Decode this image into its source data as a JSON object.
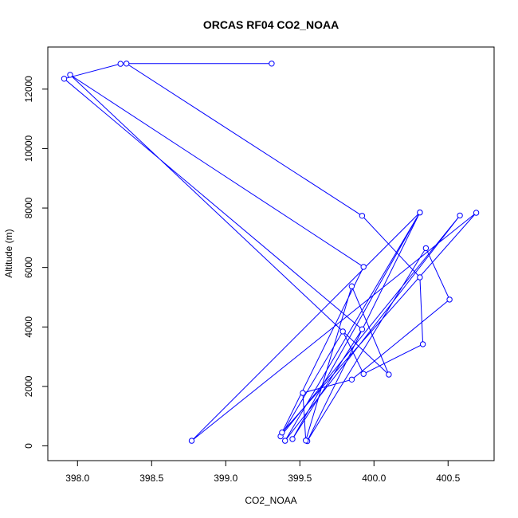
{
  "chart_data": {
    "type": "line",
    "title": "ORCAS RF04 CO2_NOAA",
    "xlabel": "CO2_NOAA",
    "ylabel": "Altitude (m)",
    "xlim": [
      397.92,
      400.69
    ],
    "ylim": [
      60,
      12860
    ],
    "xticks": [
      "398.0",
      "398.5",
      "399.0",
      "399.5",
      "400.0",
      "400.5"
    ],
    "yticks": [
      "0",
      "2000",
      "4000",
      "6000",
      "8000",
      "10000",
      "12000"
    ],
    "grid": false,
    "line_color": "#0000ff",
    "marker": "open-circle",
    "series": [
      {
        "x": [
          399.31,
          398.33,
          399.92,
          400.31,
          400.33,
          399.93,
          399.79,
          399.37,
          400.58,
          399.4,
          400.31,
          399.55,
          400.35,
          400.51,
          399.85,
          399.52,
          399.54,
          399.85,
          400.1,
          397.95,
          399.93,
          399.38,
          400.69,
          398.77,
          400.31,
          399.45,
          399.92,
          397.91,
          398.29
        ],
        "y": [
          12860,
          12860,
          7740,
          5670,
          3420,
          2420,
          3850,
          320,
          7750,
          170,
          7850,
          160,
          6650,
          4920,
          2230,
          1780,
          180,
          5370,
          2400,
          12480,
          6020,
          450,
          7840,
          170,
          7850,
          230,
          3920,
          12350,
          12850
        ]
      }
    ]
  }
}
